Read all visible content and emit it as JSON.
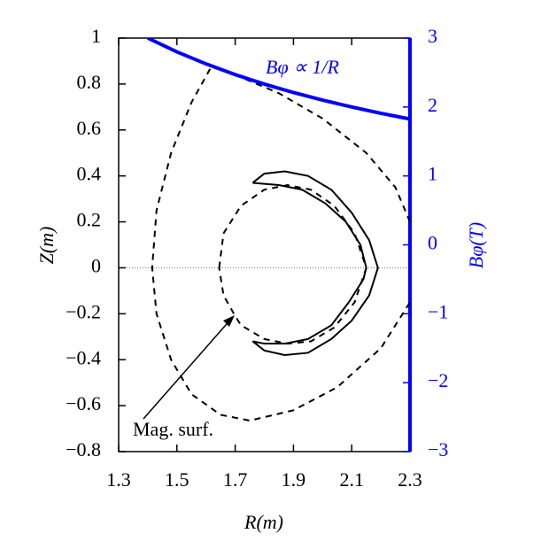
{
  "chart_data": {
    "type": "line",
    "xlabel": "R(m)",
    "ylabel": "Z(m)",
    "y2label": "Bφ(T)",
    "xlim": [
      1.3,
      2.3
    ],
    "xticks": [
      1.3,
      1.5,
      1.7,
      1.9,
      2.1,
      2.3
    ],
    "ylim": [
      -0.8,
      1
    ],
    "yticks": [
      {
        "value": -0.8,
        "label": "−0.8"
      },
      {
        "value": -0.6,
        "label": "−0.6"
      },
      {
        "value": -0.4,
        "label": "−0.4"
      },
      {
        "value": -0.2,
        "label": "−0.2"
      },
      0,
      0.2,
      0.4,
      0.6,
      0.8,
      1
    ],
    "y2lim": [
      -3,
      3
    ],
    "y2ticks": [
      {
        "value": -3,
        "label": "−3"
      },
      {
        "value": -2,
        "label": "−2"
      },
      {
        "value": -1,
        "label": "−1"
      },
      0,
      1,
      2,
      3
    ],
    "y2color": "#0000ff",
    "series": [
      {
        "color": "#000000",
        "style": "dashed",
        "x": [
          2.3,
          2.25,
          2.15,
          2.0,
          1.85,
          1.7,
          1.62,
          1.55,
          1.48,
          1.43,
          1.415,
          1.43,
          1.48,
          1.55,
          1.65,
          1.75,
          1.9,
          2.05,
          2.2,
          2.3
        ],
        "values": [
          0.2,
          0.35,
          0.5,
          0.65,
          0.76,
          0.84,
          0.88,
          0.72,
          0.5,
          0.25,
          0,
          -0.2,
          -0.4,
          -0.55,
          -0.64,
          -0.665,
          -0.62,
          -0.52,
          -0.35,
          -0.15
        ]
      },
      {
        "color": "#000000",
        "style": "dashed",
        "x": [
          1.645,
          1.66,
          1.72,
          1.8,
          1.88,
          1.96,
          2.04,
          2.11,
          2.15,
          2.11,
          2.04,
          1.96,
          1.88,
          1.8,
          1.72,
          1.7,
          1.66,
          1.645
        ],
        "values": [
          0,
          0.15,
          0.27,
          0.34,
          0.36,
          0.34,
          0.27,
          0.15,
          0,
          -0.15,
          -0.26,
          -0.32,
          -0.33,
          -0.31,
          -0.25,
          -0.21,
          -0.12,
          0
        ]
      },
      {
        "color": "#000000",
        "style": "solid",
        "x": [
          1.76,
          1.8,
          1.87,
          1.95,
          2.03,
          2.1,
          2.16,
          2.19,
          2.16,
          2.1,
          2.03,
          1.95,
          1.87,
          1.8,
          1.76,
          1.8,
          1.87,
          1.95,
          2.03,
          2.09,
          2.14,
          2.15,
          2.13,
          2.08,
          2.01,
          1.93,
          1.85,
          1.76
        ],
        "values": [
          0.37,
          0.41,
          0.42,
          0.4,
          0.34,
          0.24,
          0.12,
          0,
          -0.12,
          -0.23,
          -0.31,
          -0.37,
          -0.38,
          -0.36,
          -0.32,
          -0.33,
          -0.33,
          -0.31,
          -0.25,
          -0.15,
          -0.05,
          0,
          0.1,
          0.2,
          0.28,
          0.34,
          0.36,
          0.37
        ]
      },
      {
        "color": "#0000ff",
        "style": "thick",
        "axis": "y2",
        "x": [
          1.4,
          1.5,
          1.6,
          1.7,
          1.8,
          1.9,
          2.0,
          2.1,
          2.2,
          2.3
        ],
        "values": [
          3.0,
          2.8,
          2.625,
          2.47,
          2.333,
          2.21,
          2.1,
          2.0,
          1.909,
          1.826
        ]
      }
    ],
    "annotations": [
      {
        "text": "Bφ ∝ 1/R"
      },
      {
        "text": "Mag. surf."
      }
    ]
  }
}
